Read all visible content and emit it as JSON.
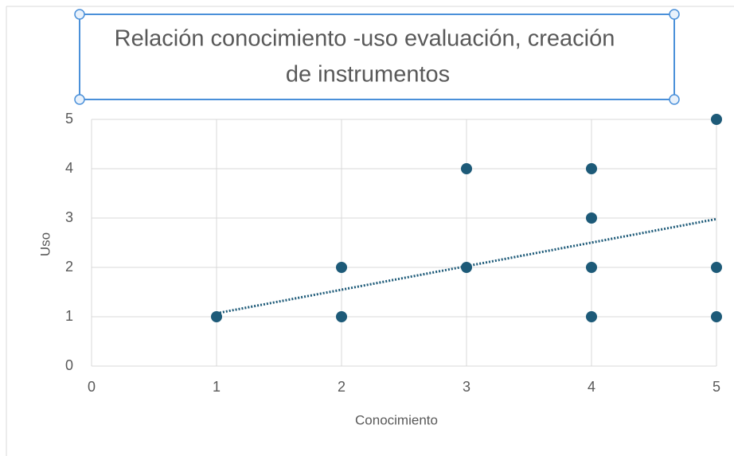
{
  "chart_data": {
    "type": "scatter",
    "title": [
      "Relación conocimiento   -uso evaluación, creación",
      "de instrumentos"
    ],
    "x_label": "Conocimiento",
    "y_label": "Uso",
    "series": [
      {
        "color": "#1d5a78",
        "x": [
          1,
          2,
          2,
          3,
          3,
          4,
          4,
          4,
          4,
          5,
          5,
          5
        ],
        "values": [
          1,
          2,
          1,
          4,
          2,
          4,
          3,
          2,
          1,
          5,
          2,
          1
        ]
      }
    ],
    "trendline": {
      "x": [
        1,
        5
      ],
      "values": [
        1.07,
        2.98
      ],
      "color": "#1d5a78"
    },
    "xlim": [
      0,
      5
    ],
    "xticks": [
      0,
      1,
      2,
      3,
      4,
      5
    ],
    "ylim": [
      0,
      5
    ],
    "yticks": [
      0,
      1,
      2,
      3,
      4,
      5
    ],
    "grid": true
  }
}
